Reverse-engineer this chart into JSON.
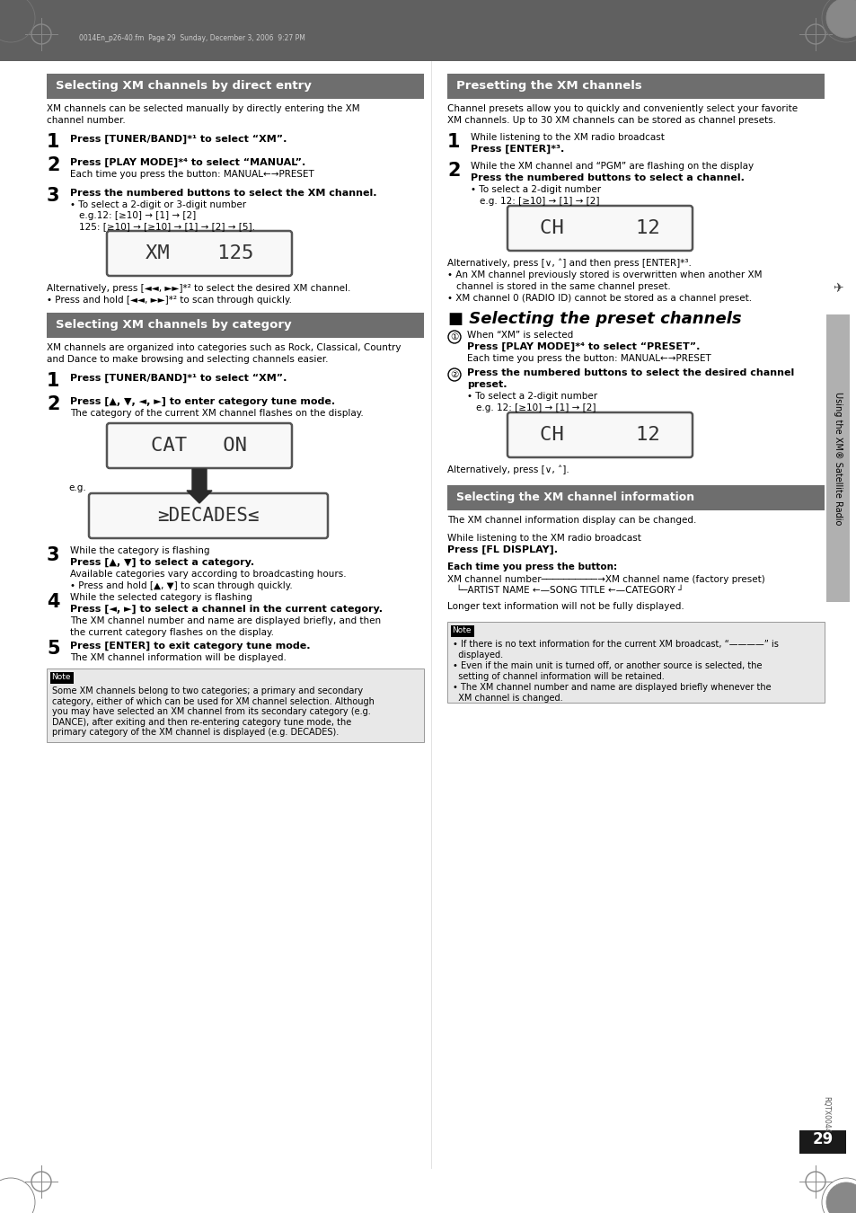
{
  "page_bg": "#ffffff",
  "header_bg": "#606060",
  "section_header_bg": "#707070",
  "page_number": "29",
  "header_text": "0014En_p26-40.fm  Page 29  Sunday, December 3, 2006  9:27 PM",
  "sidebar_text": "Using the XM® Satellite Radio",
  "sec1_title": "Selecting XM channels by direct entry",
  "sec2_title": "Selecting XM channels by category",
  "sec3_title": "Presetting the XM channels",
  "sec4_title": "Selecting the preset channels",
  "sec5_title": "Selecting the XM channel information"
}
